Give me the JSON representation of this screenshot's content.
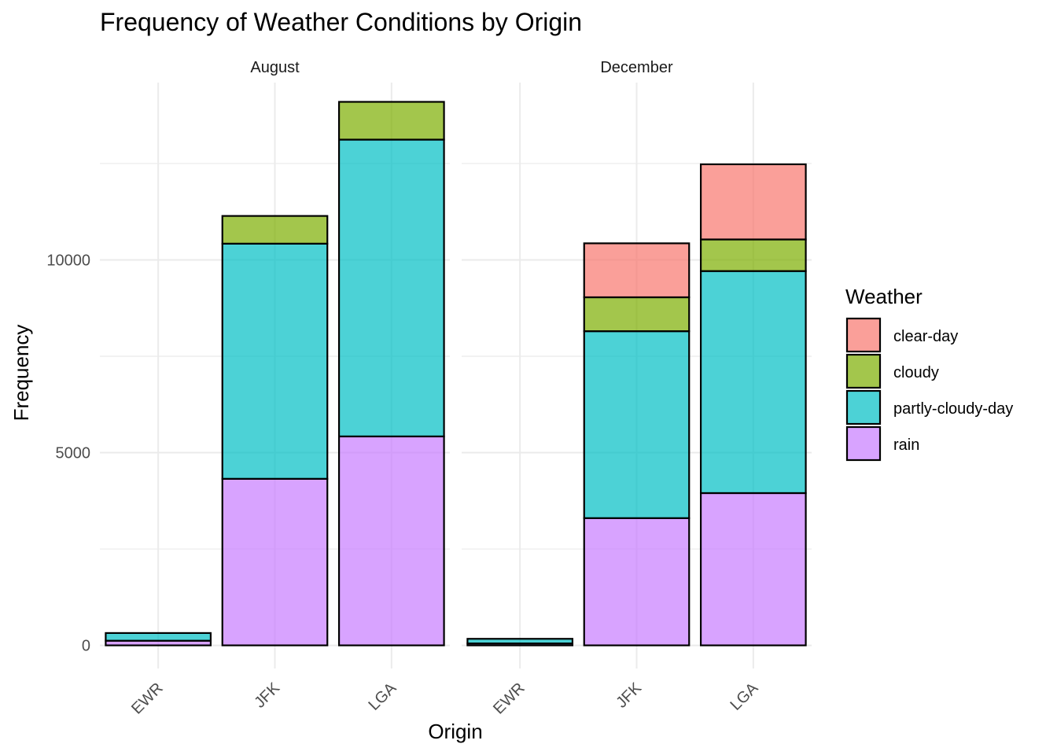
{
  "chart_data": {
    "type": "bar",
    "stacked": true,
    "title": "Frequency of Weather Conditions by Origin",
    "xlabel": "Origin",
    "ylabel": "Frequency",
    "ylim": [
      -600,
      14600
    ],
    "yticks": [
      0,
      5000,
      10000
    ],
    "ytick_labels": [
      "0",
      "5000",
      "10000"
    ],
    "categories": [
      "EWR",
      "JFK",
      "LGA"
    ],
    "stack_order": [
      "rain",
      "partly-cloudy-day",
      "cloudy",
      "clear-day"
    ],
    "legend": {
      "title": "Weather",
      "position": "right",
      "entries": [
        {
          "name": "clear-day",
          "color": "#F8766D"
        },
        {
          "name": "cloudy",
          "color": "#7CAE00"
        },
        {
          "name": "partly-cloudy-day",
          "color": "#00BFC4"
        },
        {
          "name": "rain",
          "color": "#C77CFF"
        }
      ]
    },
    "facets": [
      {
        "label": "August",
        "series": [
          {
            "name": "rain",
            "values": [
              120,
              4320,
              5420
            ]
          },
          {
            "name": "partly-cloudy-day",
            "values": [
              200,
              6100,
              7700
            ]
          },
          {
            "name": "cloudy",
            "values": [
              0,
              720,
              980
            ]
          },
          {
            "name": "clear-day",
            "values": [
              0,
              0,
              0
            ]
          }
        ]
      },
      {
        "label": "December",
        "series": [
          {
            "name": "rain",
            "values": [
              50,
              3300,
              3950
            ]
          },
          {
            "name": "partly-cloudy-day",
            "values": [
              120,
              4850,
              5760
            ]
          },
          {
            "name": "cloudy",
            "values": [
              0,
              880,
              820
            ]
          },
          {
            "name": "clear-day",
            "values": [
              0,
              1400,
              1950
            ]
          }
        ]
      }
    ]
  }
}
